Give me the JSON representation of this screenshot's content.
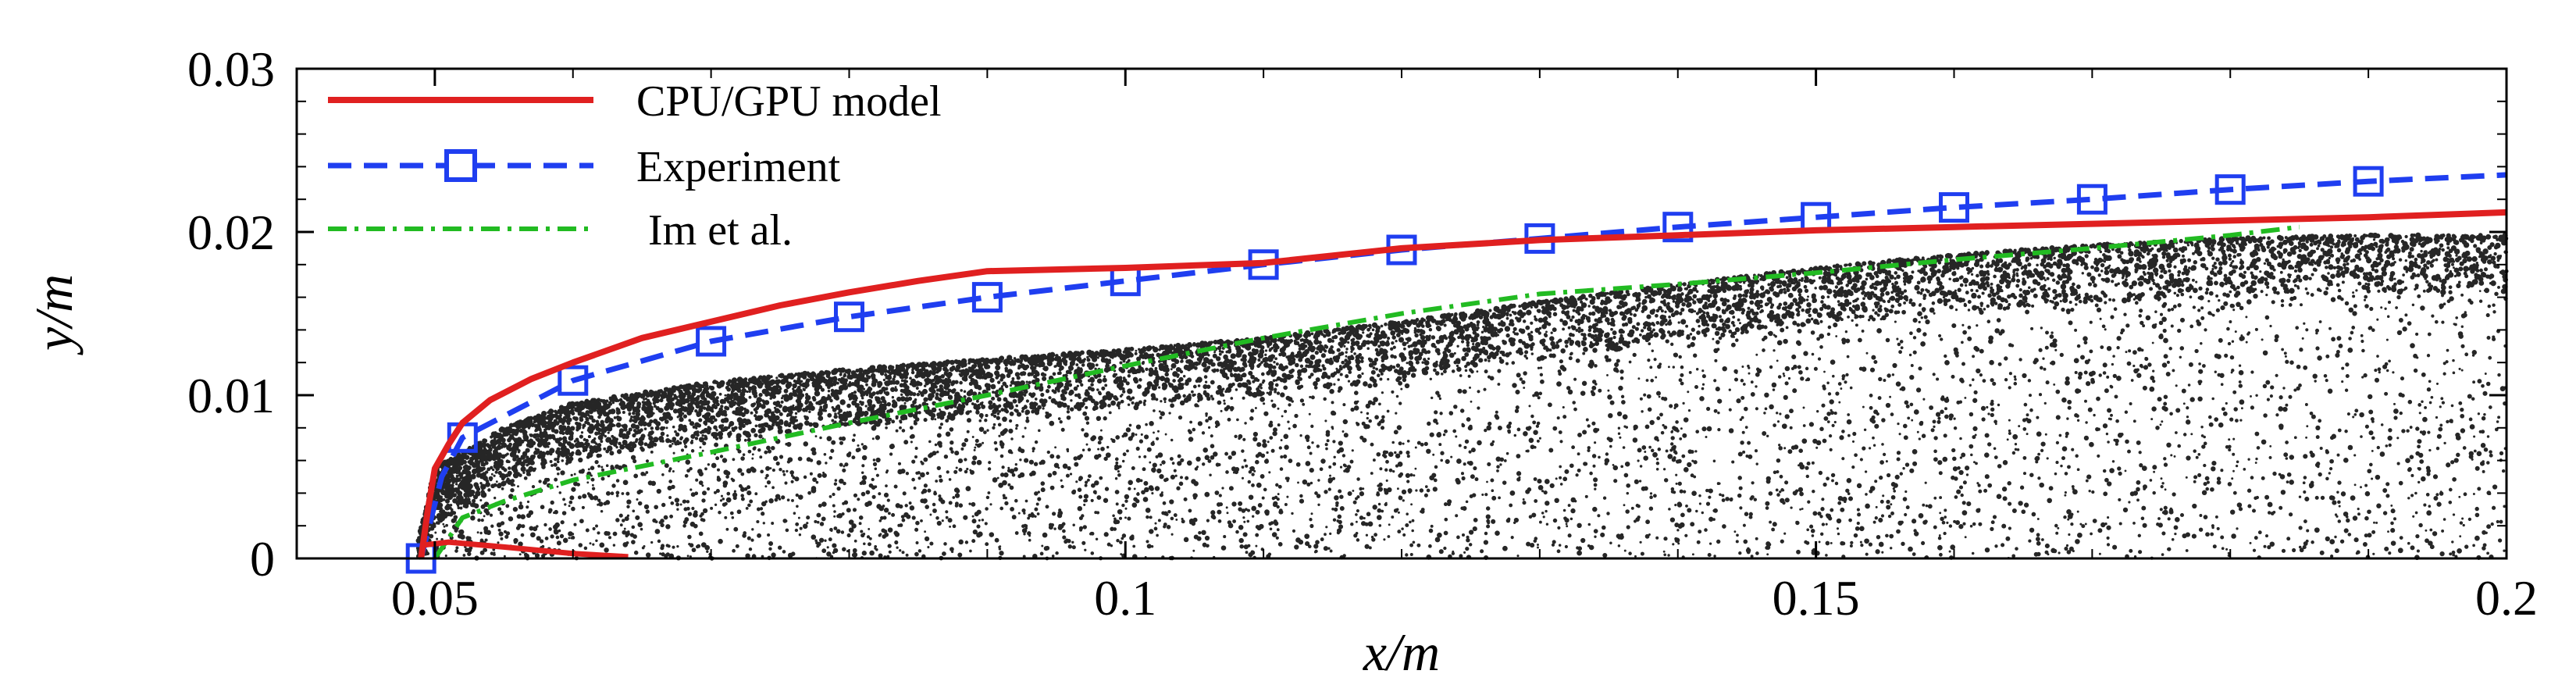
{
  "chart_data": {
    "type": "line",
    "title": "",
    "xlabel": "x/m",
    "ylabel": "y/m",
    "xlim": [
      0.04,
      0.2
    ],
    "ylim": [
      0,
      0.03
    ],
    "x_ticks": [
      0.05,
      0.1,
      0.15,
      0.2
    ],
    "x_tick_labels": [
      "0.05",
      "0.1",
      "0.15",
      "0.2"
    ],
    "y_ticks": [
      0,
      0.01,
      0.02,
      0.03
    ],
    "y_tick_labels": [
      "0",
      "0.01",
      "0.02",
      "0.03"
    ],
    "grid": false,
    "legend_position": "top-left",
    "series": [
      {
        "name": "CPU/GPU model",
        "color": "#e02020",
        "style": "solid",
        "points": [
          [
            0.049,
            0.0
          ],
          [
            0.0495,
            0.003
          ],
          [
            0.05,
            0.0055
          ],
          [
            0.051,
            0.007
          ],
          [
            0.052,
            0.0083
          ],
          [
            0.054,
            0.0097
          ],
          [
            0.057,
            0.011
          ],
          [
            0.06,
            0.012
          ],
          [
            0.065,
            0.0135
          ],
          [
            0.07,
            0.0145
          ],
          [
            0.075,
            0.0155
          ],
          [
            0.08,
            0.0163
          ],
          [
            0.085,
            0.017
          ],
          [
            0.09,
            0.0176
          ],
          [
            0.1,
            0.0178
          ],
          [
            0.11,
            0.0181
          ],
          [
            0.12,
            0.019
          ],
          [
            0.13,
            0.0195
          ],
          [
            0.14,
            0.0198
          ],
          [
            0.15,
            0.0201
          ],
          [
            0.16,
            0.0203
          ],
          [
            0.17,
            0.0205
          ],
          [
            0.18,
            0.0207
          ],
          [
            0.19,
            0.0209
          ],
          [
            0.2,
            0.0212
          ]
        ],
        "secondary_points": [
          [
            0.049,
            0.0008
          ],
          [
            0.051,
            0.001
          ],
          [
            0.055,
            0.0007
          ],
          [
            0.06,
            0.0003
          ],
          [
            0.064,
            0.0001
          ]
        ]
      },
      {
        "name": "Experiment",
        "color": "#1f3ef0",
        "style": "dashed",
        "marker": "square",
        "points": [
          [
            0.049,
            0.0
          ],
          [
            0.0505,
            0.005
          ],
          [
            0.052,
            0.0074
          ],
          [
            0.06,
            0.0109
          ],
          [
            0.07,
            0.0133
          ],
          [
            0.08,
            0.0148
          ],
          [
            0.09,
            0.016
          ],
          [
            0.1,
            0.017
          ],
          [
            0.11,
            0.018
          ],
          [
            0.12,
            0.0189
          ],
          [
            0.13,
            0.0196
          ],
          [
            0.14,
            0.0203
          ],
          [
            0.15,
            0.0209
          ],
          [
            0.16,
            0.0215
          ],
          [
            0.17,
            0.022
          ],
          [
            0.18,
            0.0226
          ],
          [
            0.19,
            0.0231
          ],
          [
            0.2,
            0.0235
          ]
        ],
        "marker_points": [
          [
            0.049,
            0.0
          ],
          [
            0.052,
            0.0074
          ],
          [
            0.06,
            0.0109
          ],
          [
            0.07,
            0.0133
          ],
          [
            0.08,
            0.0148
          ],
          [
            0.09,
            0.016
          ],
          [
            0.1,
            0.017
          ],
          [
            0.11,
            0.018
          ],
          [
            0.12,
            0.0189
          ],
          [
            0.13,
            0.0196
          ],
          [
            0.14,
            0.0203
          ],
          [
            0.15,
            0.0209
          ],
          [
            0.16,
            0.0215
          ],
          [
            0.17,
            0.022
          ],
          [
            0.18,
            0.0226
          ],
          [
            0.19,
            0.0231
          ]
        ]
      },
      {
        "name": "Im et al.",
        "color": "#22bb22",
        "style": "dash-dot",
        "points": [
          [
            0.05,
            0.0
          ],
          [
            0.052,
            0.0025
          ],
          [
            0.055,
            0.0035
          ],
          [
            0.06,
            0.0048
          ],
          [
            0.07,
            0.0065
          ],
          [
            0.08,
            0.0083
          ],
          [
            0.09,
            0.01
          ],
          [
            0.1,
            0.0118
          ],
          [
            0.11,
            0.0135
          ],
          [
            0.12,
            0.015
          ],
          [
            0.13,
            0.0162
          ],
          [
            0.14,
            0.0168
          ],
          [
            0.15,
            0.0175
          ],
          [
            0.16,
            0.0183
          ],
          [
            0.17,
            0.019
          ],
          [
            0.18,
            0.0198
          ],
          [
            0.185,
            0.0203
          ]
        ]
      }
    ],
    "scatter_field": {
      "name": "particles",
      "color": "#000000",
      "upper_boundary": [
        [
          0.0485,
          0.0
        ],
        [
          0.05,
          0.0055
        ],
        [
          0.055,
          0.008
        ],
        [
          0.06,
          0.0095
        ],
        [
          0.07,
          0.0108
        ],
        [
          0.08,
          0.0116
        ],
        [
          0.09,
          0.0122
        ],
        [
          0.1,
          0.0128
        ],
        [
          0.11,
          0.0135
        ],
        [
          0.12,
          0.0145
        ],
        [
          0.13,
          0.0157
        ],
        [
          0.14,
          0.0168
        ],
        [
          0.15,
          0.0178
        ],
        [
          0.16,
          0.0186
        ],
        [
          0.17,
          0.0192
        ],
        [
          0.18,
          0.0196
        ],
        [
          0.19,
          0.0198
        ],
        [
          0.2,
          0.0198
        ]
      ],
      "dense_band_thickness": 0.0035
    }
  }
}
